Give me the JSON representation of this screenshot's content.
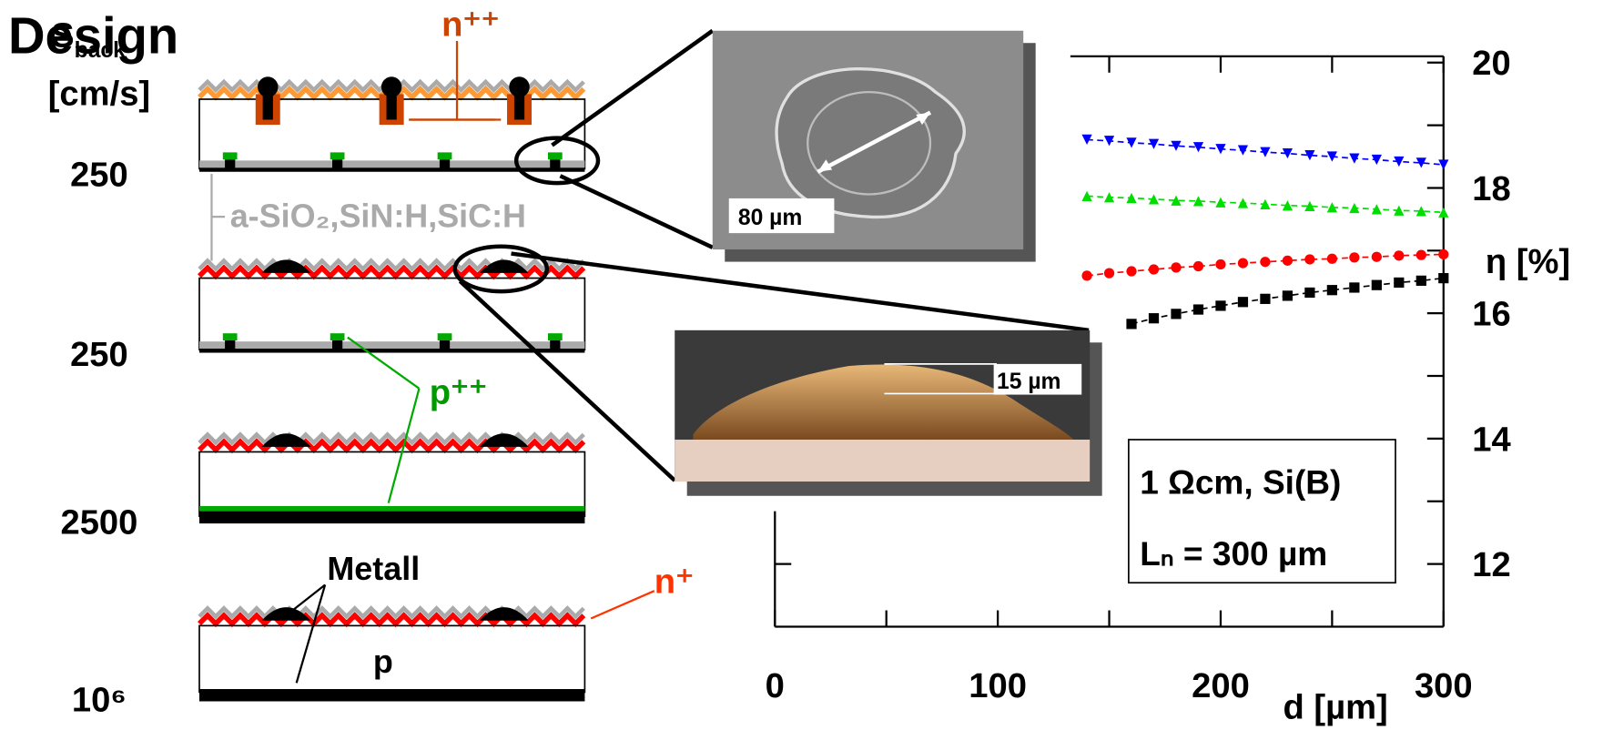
{
  "header": {
    "title": "Design"
  },
  "left_axis": {
    "symbol": "S",
    "subscript": "back",
    "unit": "[cm/s]",
    "values": [
      "250",
      "250",
      "2500",
      "10⁶"
    ]
  },
  "labels": {
    "n_pp": "n⁺⁺",
    "passivation": "a-SiO₂,SiN:H,SiC:H",
    "p_pp": "p⁺⁺",
    "metal": "Metall",
    "n_p": "n⁺",
    "p": "p"
  },
  "photos": {
    "sem_scale": "80 µm",
    "cross_section_scale": "15 µm"
  },
  "chart_data": {
    "type": "line",
    "xlabel": "d [µm]",
    "ylabel": "η [%]",
    "y_axis_side": "right",
    "xlim": [
      0,
      300
    ],
    "ylim": [
      11,
      20.1
    ],
    "xticks": [
      0,
      100,
      200,
      300
    ],
    "yticks": [
      12,
      14,
      16,
      18,
      20
    ],
    "x_minor_ticks": [
      50,
      150,
      250
    ],
    "y_minor_ticks": [
      13,
      15,
      17,
      19
    ],
    "annotations": [
      "1 Ωcm, Si(B)",
      "Lₙ = 300 µm"
    ],
    "series": [
      {
        "color": "#0000ff",
        "marker": "triangle-down",
        "x": [
          140,
          150,
          160,
          170,
          180,
          190,
          200,
          210,
          220,
          230,
          240,
          250,
          260,
          270,
          280,
          290,
          300
        ],
        "values": [
          18.77,
          18.75,
          18.72,
          18.7,
          18.67,
          18.65,
          18.62,
          18.6,
          18.57,
          18.55,
          18.52,
          18.5,
          18.47,
          18.45,
          18.42,
          18.4,
          18.37
        ]
      },
      {
        "color": "#00dd00",
        "marker": "triangle-up",
        "x": [
          140,
          150,
          160,
          170,
          180,
          190,
          200,
          210,
          220,
          230,
          240,
          250,
          260,
          270,
          280,
          290,
          300
        ],
        "values": [
          17.87,
          17.85,
          17.84,
          17.82,
          17.8,
          17.79,
          17.77,
          17.76,
          17.74,
          17.72,
          17.71,
          17.69,
          17.68,
          17.66,
          17.64,
          17.63,
          17.61
        ]
      },
      {
        "color": "#ff0000",
        "marker": "circle",
        "x": [
          140,
          150,
          160,
          170,
          180,
          190,
          200,
          210,
          220,
          230,
          240,
          250,
          260,
          270,
          280,
          290,
          300
        ],
        "values": [
          16.6,
          16.64,
          16.67,
          16.7,
          16.73,
          16.75,
          16.78,
          16.8,
          16.82,
          16.84,
          16.86,
          16.87,
          16.89,
          16.9,
          16.92,
          16.93,
          16.94
        ]
      },
      {
        "color": "#000000",
        "marker": "square",
        "x": [
          160,
          170,
          180,
          190,
          200,
          210,
          220,
          230,
          240,
          250,
          260,
          270,
          280,
          290,
          300
        ],
        "values": [
          15.83,
          15.92,
          15.99,
          16.06,
          16.12,
          16.18,
          16.23,
          16.28,
          16.33,
          16.37,
          16.41,
          16.45,
          16.49,
          16.52,
          16.56
        ]
      }
    ]
  }
}
